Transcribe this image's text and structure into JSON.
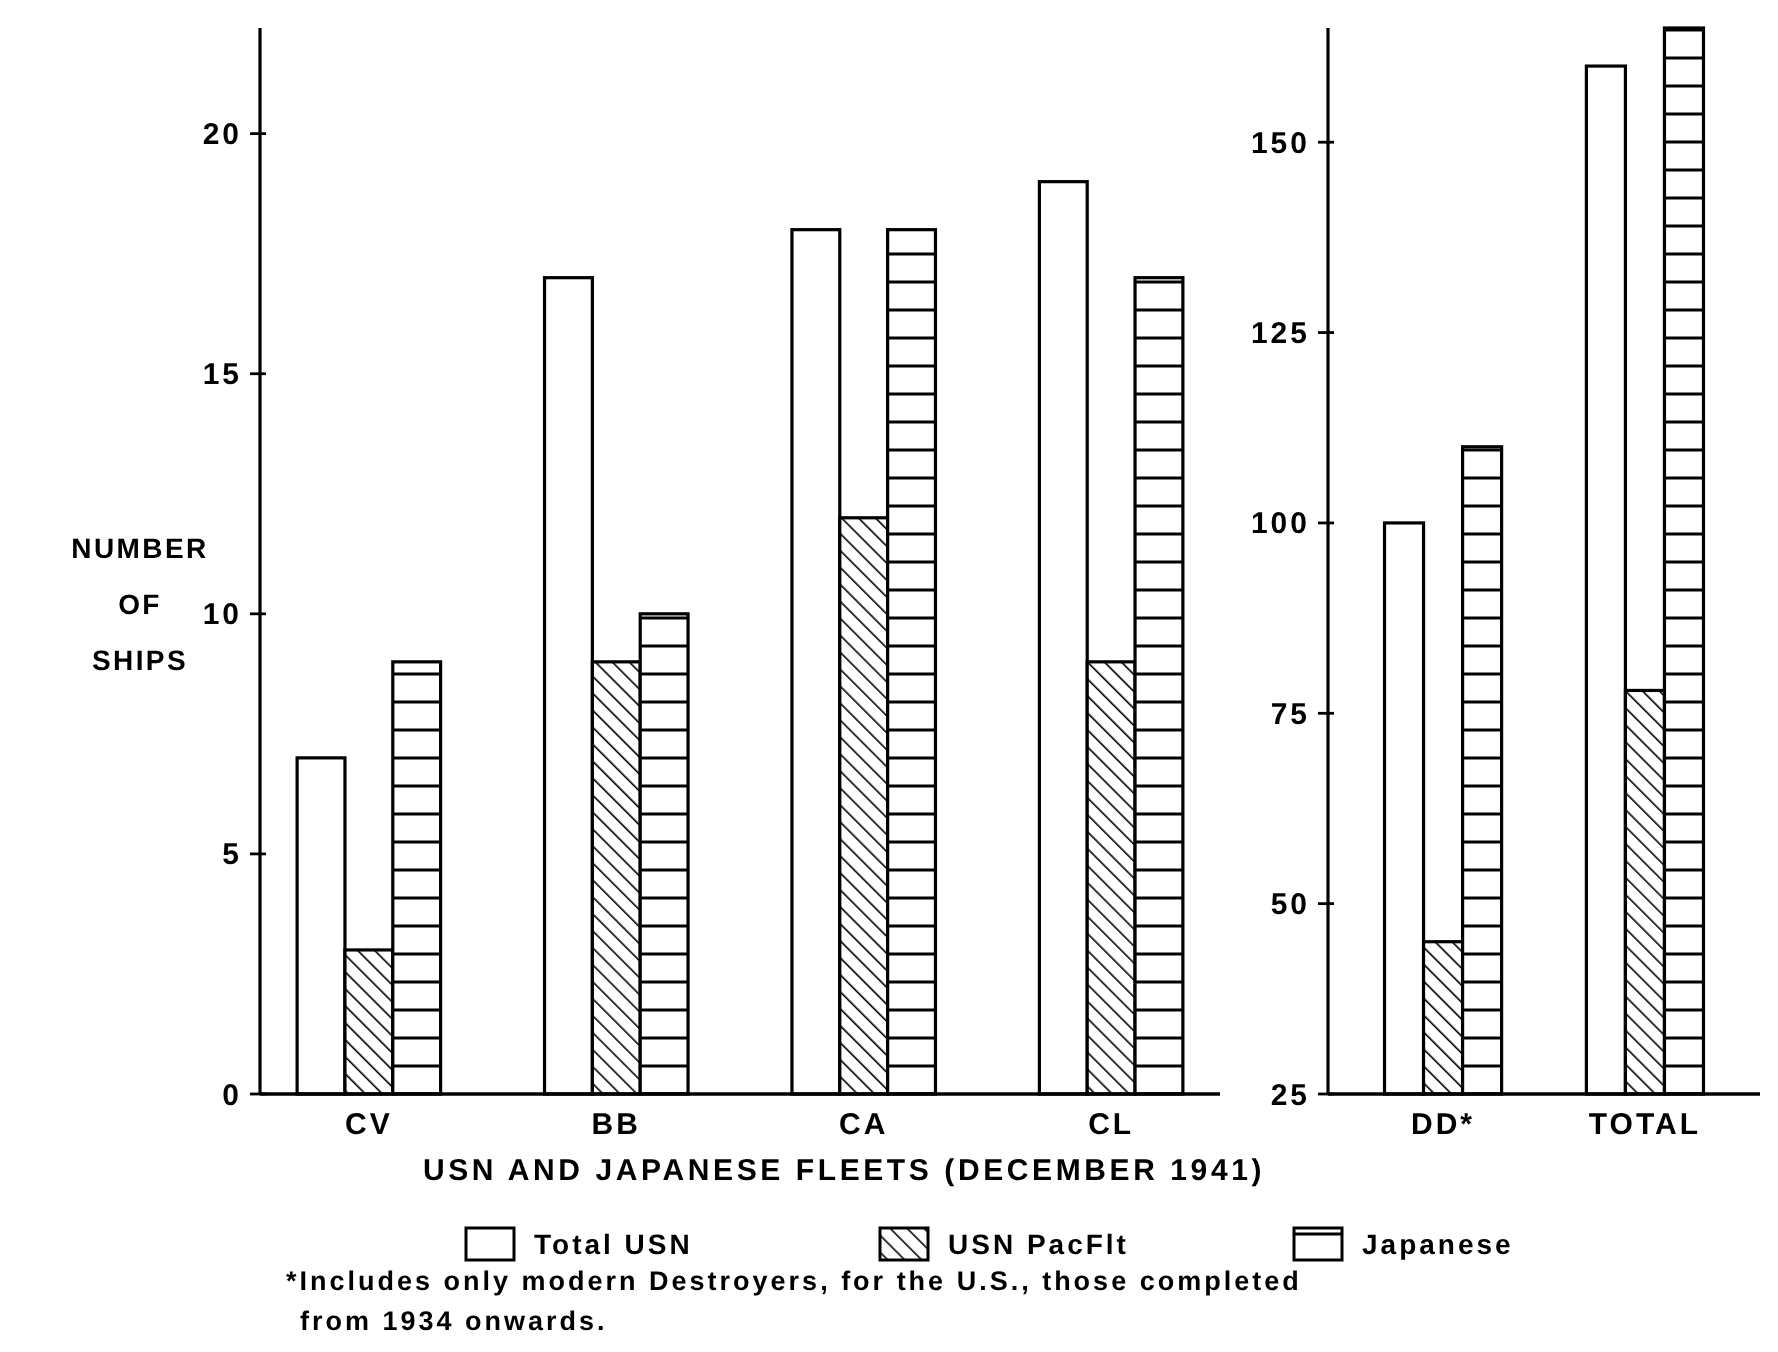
{
  "chart_data": [
    {
      "type": "bar",
      "ylabel": "NUMBER OF SHIPS",
      "xlabel": "USN AND JAPANESE FLEETS (DECEMBER 1941)",
      "categories": [
        "CV",
        "BB",
        "CA",
        "CL"
      ],
      "ylim": [
        0,
        22.2
      ],
      "yticks": [
        0,
        5,
        10,
        15,
        20
      ],
      "legend": "bottom",
      "grid": false,
      "series": [
        {
          "name": "Total USN",
          "color": "#ffffff",
          "values": [
            7,
            17,
            18,
            19
          ]
        },
        {
          "name": "USN PacFlt",
          "color": "#000000",
          "values": [
            3,
            9,
            12,
            9
          ]
        },
        {
          "name": "Japanese",
          "color": "#000000",
          "values": [
            9,
            10,
            18,
            17
          ]
        }
      ],
      "annotations": [
        "*Includes only modern Destroyers, for the U.S., those completed from 1934 onwards."
      ]
    },
    {
      "type": "bar",
      "categories": [
        "DD*",
        "TOTAL"
      ],
      "ylim": [
        25,
        165
      ],
      "yticks": [
        25,
        50,
        75,
        100,
        125,
        150
      ],
      "grid": false,
      "series": [
        {
          "color": "#ffffff",
          "values": [
            100,
            160
          ]
        },
        {
          "color": "#000000",
          "values": [
            45,
            78
          ]
        },
        {
          "color": "#000000",
          "values": [
            110,
            165
          ]
        }
      ]
    }
  ]
}
